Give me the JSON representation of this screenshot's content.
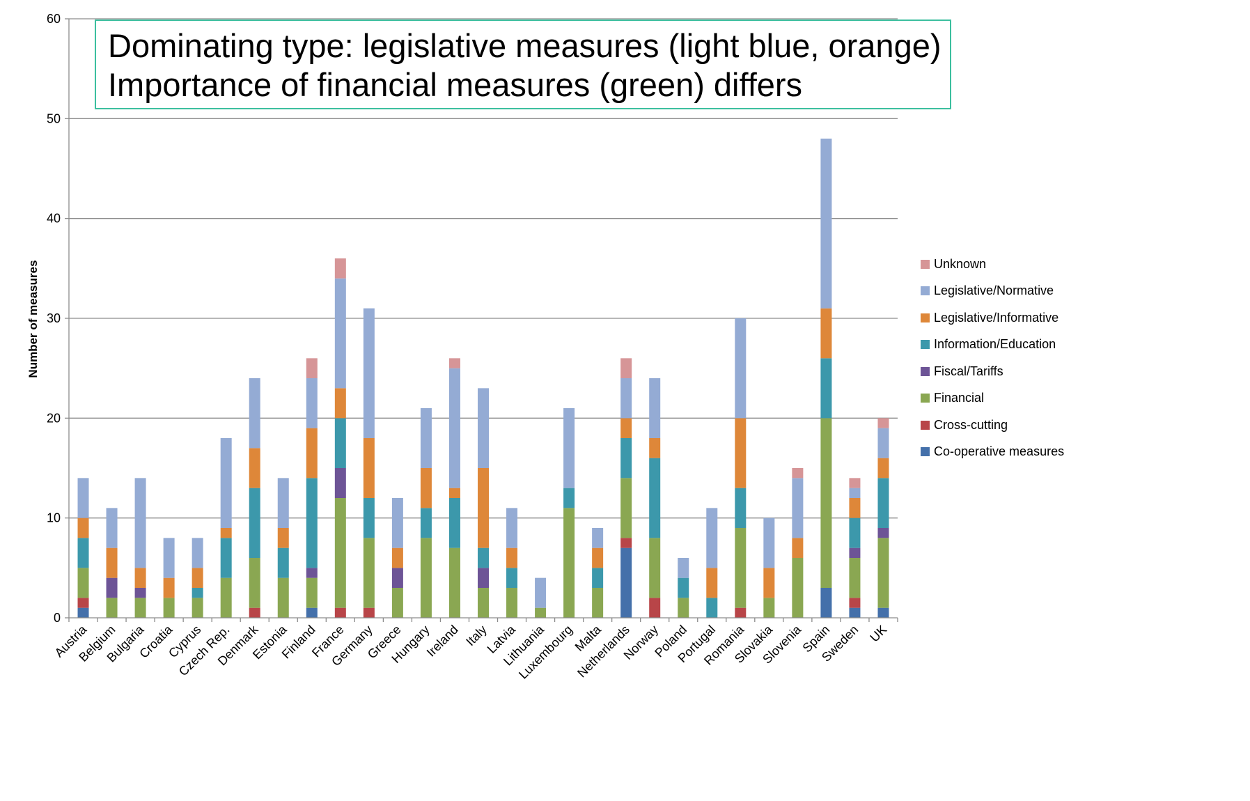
{
  "chart_data": {
    "type": "bar",
    "stacked": true,
    "annotation": {
      "line1": "Dominating type: legislative measures (light blue, orange)",
      "line2": "Importance of financial measures (green)  differs"
    },
    "xlabel": "",
    "ylabel": "Number of measures",
    "ylim": [
      0,
      60
    ],
    "yticks": [
      0,
      10,
      20,
      30,
      40,
      50,
      60
    ],
    "grid": true,
    "legend_position": "right",
    "categories": [
      "Austria",
      "Belgium",
      "Bulgaria",
      "Croatia",
      "Cyprus",
      "Czech Rep.",
      "Denmark",
      "Estonia",
      "Finland",
      "France",
      "Germany",
      "Greece",
      "Hungary",
      "Ireland",
      "Italy",
      "Latvia",
      "Lithuania",
      "Luxembourg",
      "Malta",
      "Netherlands",
      "Norway",
      "Poland",
      "Portugal",
      "Romania",
      "Slovakia",
      "Slovenia",
      "Spain",
      "Sweden",
      "UK"
    ],
    "series": [
      {
        "name": "Co-operative measures",
        "color": "#4470aa",
        "values": [
          1,
          0,
          0,
          0,
          0,
          0,
          0,
          0,
          1,
          0,
          0,
          0,
          0,
          0,
          0,
          0,
          0,
          0,
          0,
          7,
          0,
          0,
          0,
          0,
          0,
          0,
          3,
          1,
          1
        ]
      },
      {
        "name": "Cross-cutting",
        "color": "#b84548",
        "values": [
          1,
          0,
          0,
          0,
          0,
          0,
          1,
          0,
          0,
          1,
          1,
          0,
          0,
          0,
          0,
          0,
          0,
          0,
          0,
          1,
          2,
          0,
          0,
          1,
          0,
          0,
          0,
          1,
          0
        ]
      },
      {
        "name": "Financial",
        "color": "#8aa752",
        "values": [
          3,
          2,
          2,
          2,
          2,
          4,
          5,
          4,
          3,
          11,
          7,
          3,
          8,
          7,
          3,
          3,
          1,
          11,
          3,
          6,
          6,
          2,
          0,
          8,
          2,
          6,
          17,
          4,
          7
        ]
      },
      {
        "name": "Fiscal/Tariffs",
        "color": "#6d5496",
        "values": [
          0,
          2,
          1,
          0,
          0,
          0,
          0,
          0,
          1,
          3,
          0,
          2,
          0,
          0,
          2,
          0,
          0,
          0,
          0,
          0,
          0,
          0,
          0,
          0,
          0,
          0,
          0,
          1,
          1
        ]
      },
      {
        "name": "Information/Education",
        "color": "#3c98ab",
        "values": [
          3,
          0,
          0,
          0,
          1,
          4,
          7,
          3,
          9,
          5,
          4,
          0,
          3,
          5,
          2,
          2,
          0,
          2,
          2,
          4,
          8,
          2,
          2,
          4,
          0,
          0,
          6,
          3,
          5
        ]
      },
      {
        "name": "Legislative/Informative",
        "color": "#de8739",
        "values": [
          2,
          3,
          2,
          2,
          2,
          1,
          4,
          2,
          5,
          3,
          6,
          2,
          4,
          1,
          8,
          2,
          0,
          0,
          2,
          2,
          2,
          0,
          3,
          7,
          3,
          2,
          5,
          2,
          2
        ]
      },
      {
        "name": "Legislative/Normative",
        "color": "#94abd4",
        "values": [
          4,
          4,
          9,
          4,
          3,
          9,
          7,
          5,
          5,
          11,
          13,
          5,
          6,
          12,
          8,
          4,
          3,
          8,
          2,
          4,
          6,
          2,
          6,
          10,
          5,
          6,
          17,
          1,
          3
        ]
      },
      {
        "name": "Unknown",
        "color": "#d69597",
        "values": [
          0,
          0,
          0,
          0,
          0,
          0,
          0,
          0,
          2,
          2,
          0,
          0,
          0,
          1,
          0,
          0,
          0,
          0,
          0,
          2,
          0,
          0,
          0,
          0,
          0,
          1,
          0,
          1,
          1
        ]
      }
    ],
    "legend_order": [
      "Unknown",
      "Legislative/Normative",
      "Legislative/Informative",
      "Information/Education",
      "Fiscal/Tariffs",
      "Financial",
      "Cross-cutting",
      "Co-operative measures"
    ]
  }
}
